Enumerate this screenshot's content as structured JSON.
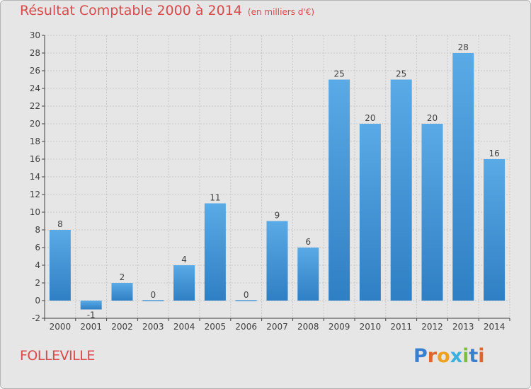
{
  "title": "Résultat Comptable 2000 à 2014",
  "unit": "(en milliers d'€)",
  "commune": "FOLLEVILLE",
  "logo": {
    "text": "Proxiti",
    "colors": [
      "#3a7fd0",
      "#e0652a",
      "#f0a020",
      "#3ab0e0",
      "#7fbf3f",
      "#3a7fd0",
      "#e0652a"
    ]
  },
  "colors": {
    "bar": "#3d8fd4",
    "barLight": "#5aaae6",
    "title": "#d94a4a",
    "grid": "#c8c8c8",
    "axis": "#404040"
  },
  "chart_data": {
    "type": "bar",
    "categories": [
      "2000",
      "2001",
      "2002",
      "2003",
      "2004",
      "2005",
      "2006",
      "2007",
      "2008",
      "2009",
      "2010",
      "2011",
      "2012",
      "2013",
      "2014"
    ],
    "values": [
      8,
      -1,
      2,
      0,
      4,
      11,
      0,
      9,
      6,
      25,
      20,
      25,
      20,
      28,
      16
    ],
    "ylim": [
      -2,
      30
    ],
    "yticks": [
      -2,
      0,
      2,
      4,
      6,
      8,
      10,
      12,
      14,
      16,
      18,
      20,
      22,
      24,
      26,
      28,
      30
    ],
    "grid": true,
    "xlabel": "",
    "ylabel": ""
  }
}
